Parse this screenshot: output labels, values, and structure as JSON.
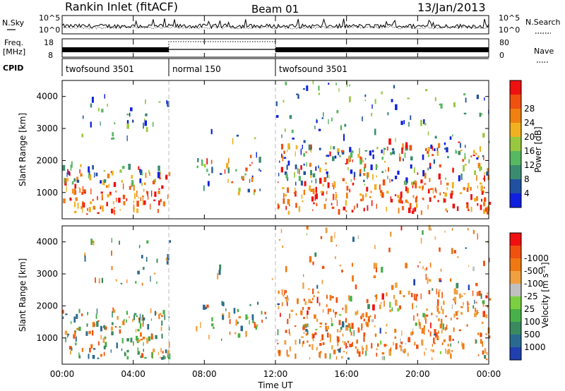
{
  "header": {
    "title": "Rankin Inlet (fitACF)",
    "beam": "Beam 01",
    "date": "13/Jan/2013"
  },
  "noise_panel": {
    "left_label": "N.Sky",
    "left_ticks": [
      "10^5",
      "10^0"
    ],
    "right_label": "N.Search",
    "right_ticks": [
      "10^5",
      "10^0"
    ]
  },
  "freq_panel": {
    "left_label": "Freq.",
    "left_unit": "[MHz]",
    "left_ticks": [
      "18",
      "8"
    ],
    "right_label": "Nave",
    "right_ticks": [
      "80",
      "0"
    ]
  },
  "cpid": {
    "label": "CPID",
    "segments": [
      {
        "name": "twofsound 3501",
        "start_h": 0,
        "end_h": 6
      },
      {
        "name": "normal 150",
        "start_h": 6,
        "end_h": 12
      },
      {
        "name": "twofsound 3501",
        "start_h": 12,
        "end_h": 24
      }
    ]
  },
  "chart_data": [
    {
      "type": "heatmap",
      "panel": "power",
      "ylabel": "Slant Range [km]",
      "yticks": [
        "1000",
        "2000",
        "3000",
        "4000"
      ],
      "ylim": [
        180,
        4500
      ],
      "xlim": [
        0,
        24
      ],
      "colorbar": {
        "label": "Power [dB]",
        "ticks": [
          "4",
          "8",
          "12",
          "16",
          "20",
          "24",
          "28"
        ],
        "colors": [
          "#1020e0",
          "#2050a0",
          "#3a8c70",
          "#56b860",
          "#98c840",
          "#f0b020",
          "#f08010",
          "#f05010",
          "#f01010"
        ]
      }
    },
    {
      "type": "heatmap",
      "panel": "velocity",
      "ylabel": "Slant Range [km]",
      "yticks": [
        "1000",
        "2000",
        "3000",
        "4000"
      ],
      "ylim": [
        180,
        4500
      ],
      "xlim": [
        0,
        24
      ],
      "xlabel": "Time UT",
      "xticks": [
        "00:00",
        "04:00",
        "08:00",
        "12:00",
        "16:00",
        "20:00",
        "00:00"
      ],
      "colorbar": {
        "label": "Velocity [m s⁻¹]",
        "ticks": [
          "1000",
          "500",
          "100",
          "25",
          "-25",
          "-100",
          "-500",
          "-1000"
        ],
        "colors": [
          "#2040b0",
          "#2a6a90",
          "#3a8a60",
          "#48b048",
          "#7ad040",
          "#c0c0c0",
          "#f0a040",
          "#f07810",
          "#f05010",
          "#f01010"
        ]
      }
    }
  ]
}
